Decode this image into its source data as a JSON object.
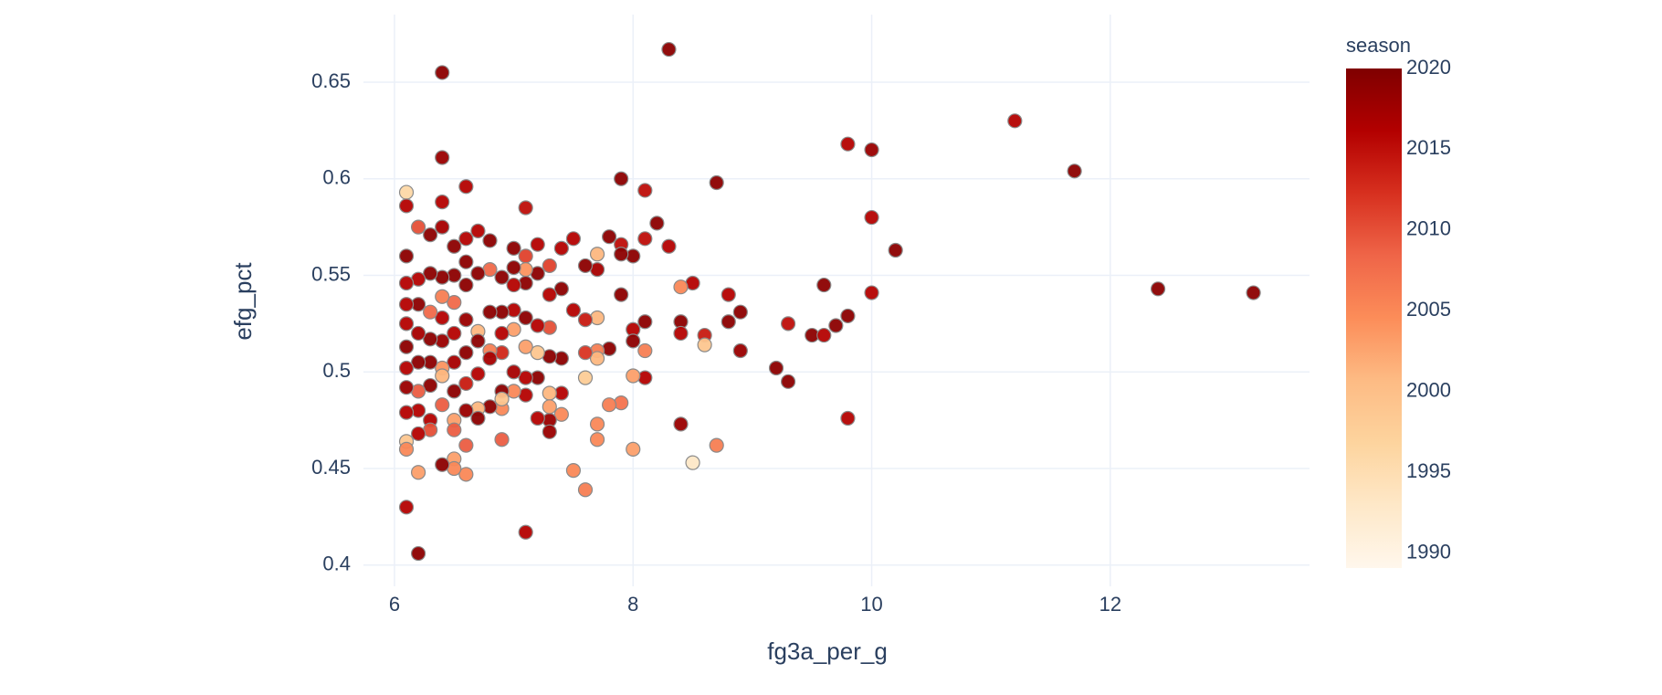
{
  "chart_data": {
    "type": "scatter",
    "xlabel": "fg3a_per_g",
    "ylabel": "efg_pct",
    "colorbar_title": "season",
    "xlim": [
      5.74,
      13.67
    ],
    "ylim": [
      0.389,
      0.685
    ],
    "xticks": [
      6,
      8,
      10,
      12
    ],
    "yticks": [
      0.4,
      0.45,
      0.5,
      0.55,
      0.6,
      0.65
    ],
    "clim": [
      1989.07,
      2020
    ],
    "cticks": [
      1990,
      1995,
      2000,
      2005,
      2010,
      2015,
      2020
    ],
    "colorscale": [
      "#fff7ec",
      "#fee8c8",
      "#fdd49e",
      "#fdbb84",
      "#fc8d59",
      "#ef6548",
      "#d7301f",
      "#b30000",
      "#7f0000"
    ],
    "grid": true,
    "x": [
      8.3,
      6.4,
      6.4,
      6.1,
      6.1,
      6.4,
      6.6,
      7.1,
      7.9,
      8.1,
      8.7,
      9.8,
      10.0,
      11.2,
      11.7,
      10.0,
      10.2,
      12.4,
      13.2,
      9.6,
      10.0,
      9.8,
      9.7,
      9.5,
      9.6,
      9.3,
      9.2,
      9.3,
      9.8,
      8.9,
      8.8,
      8.8,
      8.9,
      8.6,
      8.6,
      8.5,
      8.4,
      8.4,
      8.4,
      8.4,
      8.5,
      8.7,
      8.2,
      8.3,
      8.1,
      8.0,
      8.0,
      8.0,
      8.1,
      8.1,
      8.1,
      8.0,
      8.0,
      7.9,
      7.9,
      7.9,
      7.9,
      7.8,
      7.8,
      7.8,
      7.7,
      7.7,
      7.7,
      7.7,
      7.7,
      7.7,
      7.7,
      7.6,
      7.6,
      7.6,
      7.6,
      7.6,
      7.5,
      7.5,
      7.5,
      7.4,
      7.4,
      7.4,
      7.4,
      7.4,
      7.3,
      7.3,
      7.3,
      7.3,
      7.3,
      7.3,
      7.3,
      7.3,
      7.2,
      7.2,
      7.2,
      7.2,
      7.2,
      7.2,
      7.1,
      7.1,
      7.1,
      7.1,
      7.1,
      7.1,
      7.1,
      7.1,
      7.0,
      7.0,
      7.0,
      7.0,
      7.0,
      7.0,
      7.0,
      6.9,
      6.9,
      6.9,
      6.9,
      6.9,
      6.9,
      6.9,
      6.9,
      6.8,
      6.8,
      6.8,
      6.8,
      6.8,
      6.8,
      6.7,
      6.7,
      6.7,
      6.7,
      6.7,
      6.7,
      6.7,
      6.6,
      6.6,
      6.6,
      6.6,
      6.6,
      6.6,
      6.6,
      6.6,
      6.6,
      6.5,
      6.5,
      6.5,
      6.5,
      6.5,
      6.5,
      6.5,
      6.5,
      6.5,
      6.5,
      6.4,
      6.4,
      6.4,
      6.4,
      6.4,
      6.4,
      6.4,
      6.4,
      6.4,
      6.3,
      6.3,
      6.3,
      6.3,
      6.3,
      6.3,
      6.3,
      6.3,
      6.2,
      6.2,
      6.2,
      6.2,
      6.2,
      6.2,
      6.2,
      6.2,
      6.2,
      6.2,
      6.1,
      6.1,
      6.1,
      6.1,
      6.1,
      6.1,
      6.1,
      6.1,
      6.1,
      6.1,
      6.1
    ],
    "values": [
      0.667,
      0.655,
      0.611,
      0.593,
      0.586,
      0.588,
      0.596,
      0.585,
      0.6,
      0.594,
      0.598,
      0.618,
      0.615,
      0.63,
      0.604,
      0.58,
      0.563,
      0.543,
      0.541,
      0.545,
      0.541,
      0.529,
      0.524,
      0.519,
      0.519,
      0.525,
      0.502,
      0.495,
      0.476,
      0.531,
      0.54,
      0.526,
      0.511,
      0.519,
      0.514,
      0.546,
      0.544,
      0.526,
      0.52,
      0.473,
      0.453,
      0.462,
      0.577,
      0.565,
      0.569,
      0.56,
      0.522,
      0.516,
      0.526,
      0.511,
      0.497,
      0.498,
      0.46,
      0.566,
      0.561,
      0.54,
      0.484,
      0.57,
      0.512,
      0.483,
      0.561,
      0.553,
      0.528,
      0.511,
      0.507,
      0.473,
      0.465,
      0.555,
      0.527,
      0.51,
      0.497,
      0.439,
      0.569,
      0.532,
      0.449,
      0.564,
      0.543,
      0.507,
      0.489,
      0.478,
      0.555,
      0.54,
      0.523,
      0.508,
      0.489,
      0.475,
      0.469,
      0.482,
      0.566,
      0.551,
      0.524,
      0.51,
      0.497,
      0.476,
      0.56,
      0.553,
      0.546,
      0.528,
      0.513,
      0.497,
      0.488,
      0.417,
      0.564,
      0.554,
      0.545,
      0.532,
      0.522,
      0.5,
      0.49,
      0.549,
      0.531,
      0.52,
      0.51,
      0.49,
      0.481,
      0.486,
      0.465,
      0.568,
      0.553,
      0.531,
      0.511,
      0.507,
      0.482,
      0.573,
      0.551,
      0.521,
      0.516,
      0.499,
      0.481,
      0.476,
      0.569,
      0.557,
      0.545,
      0.527,
      0.51,
      0.494,
      0.48,
      0.462,
      0.447,
      0.565,
      0.55,
      0.536,
      0.52,
      0.505,
      0.49,
      0.475,
      0.455,
      0.45,
      0.47,
      0.575,
      0.549,
      0.539,
      0.528,
      0.516,
      0.502,
      0.498,
      0.483,
      0.452,
      0.571,
      0.551,
      0.531,
      0.517,
      0.505,
      0.493,
      0.475,
      0.47,
      0.575,
      0.548,
      0.535,
      0.52,
      0.505,
      0.49,
      0.48,
      0.468,
      0.448,
      0.406,
      0.56,
      0.546,
      0.535,
      0.525,
      0.513,
      0.502,
      0.492,
      0.479,
      0.464,
      0.46,
      0.43
    ],
    "colors": [
      2019,
      2019,
      2018,
      1996,
      2016,
      2016,
      2016,
      2015,
      2019,
      2015,
      2019,
      2016,
      2018,
      2016,
      2019,
      2016,
      2019,
      2019,
      2019,
      2019,
      2016,
      2019,
      2019,
      2019,
      2016,
      2015,
      2019,
      2019,
      2016,
      2019,
      2016,
      2019,
      2018,
      2014,
      1999,
      2016,
      2005,
      2019,
      2016,
      2018,
      1993,
      2006,
      2019,
      2016,
      2015,
      2019,
      2016,
      2019,
      2019,
      2006,
      2016,
      2003,
      2003,
      2015,
      2019,
      2019,
      2007,
      2019,
      2019,
      2006,
      2001,
      2017,
      2001,
      2006,
      2001,
      2005,
      2005,
      2019,
      2014,
      2012,
      1998,
      2006,
      2016,
      2016,
      2005,
      2016,
      2019,
      2019,
      2016,
      2005,
      2011,
      2016,
      2010,
      2019,
      2001,
      2018,
      2018,
      2003,
      2016,
      2019,
      2016,
      1999,
      2019,
      2016,
      2011,
      2004,
      2019,
      2019,
      2003,
      2016,
      2016,
      2016,
      2019,
      2019,
      2016,
      2016,
      2003,
      2017,
      2005,
      2019,
      2019,
      2016,
      2013,
      2019,
      2005,
      1999,
      2009,
      2019,
      2008,
      2019,
      2006,
      2017,
      2019,
      2016,
      2019,
      2001,
      2019,
      2016,
      2001,
      2019,
      2016,
      2019,
      2019,
      2018,
      2019,
      2014,
      2018,
      2009,
      2005,
      2019,
      2019,
      2008,
      2016,
      2017,
      2019,
      2003,
      2003,
      2005,
      2009,
      2017,
      2019,
      2006,
      2016,
      2018,
      2004,
      2001,
      2009,
      2019,
      2019,
      2019,
      2008,
      2019,
      2019,
      2019,
      2016,
      2010,
      2010,
      2016,
      2019,
      2017,
      2019,
      2009,
      2016,
      2016,
      2003,
      2019,
      2019,
      2016,
      2016,
      2016,
      2019,
      2016,
      2018,
      2016,
      1999,
      2005,
      2016
    ]
  }
}
